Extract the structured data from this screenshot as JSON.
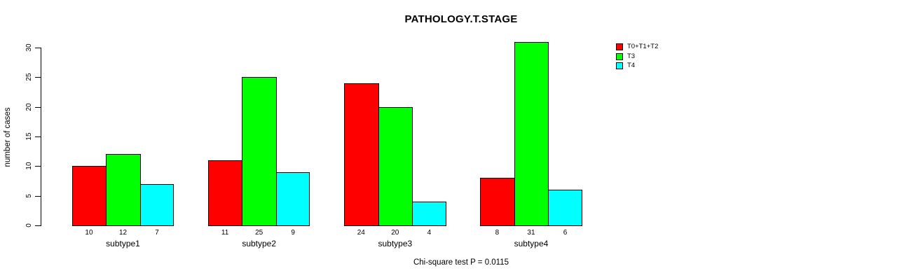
{
  "chart_data": {
    "type": "bar",
    "title": "PATHOLOGY.T.STAGE",
    "ylabel": "number of cases",
    "xlabel": "",
    "categories": [
      "subtype1",
      "subtype2",
      "subtype3",
      "subtype4"
    ],
    "series": [
      {
        "name": "T0+T1+T2",
        "color": "#ff0000",
        "values": [
          10,
          11,
          24,
          8
        ]
      },
      {
        "name": "T3",
        "color": "#00ff00",
        "values": [
          12,
          25,
          20,
          31
        ]
      },
      {
        "name": "T4",
        "color": "#00ffff",
        "values": [
          7,
          9,
          4,
          6
        ]
      }
    ],
    "value_labels_shown": true,
    "yticks": [
      0,
      5,
      10,
      15,
      20,
      25,
      30
    ],
    "ylim": [
      0,
      31
    ],
    "grid": false,
    "legend_position": "right",
    "annotation": "Chi-square test P = 0.0115",
    "bar_border_color": "#000000",
    "background": "#ffffff"
  }
}
